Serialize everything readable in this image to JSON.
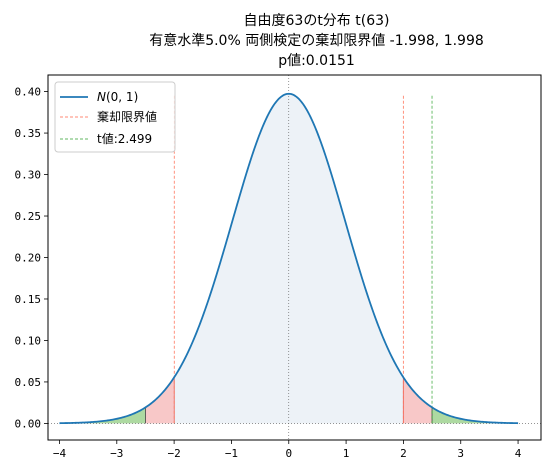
{
  "chart_data": {
    "type": "area",
    "title_lines": [
      "自由度63のt分布 t(63)",
      "有意水準5.0% 両側検定の棄却限界値 -1.998, 1.998",
      "p値:0.0151"
    ],
    "xlabel": "",
    "ylabel": "",
    "xlim": [
      -4.2,
      4.4
    ],
    "ylim": [
      -0.02,
      0.42
    ],
    "x_ticks": [
      -4,
      -3,
      -2,
      -1,
      0,
      1,
      2,
      3,
      4
    ],
    "x_tick_labels": [
      "−4",
      "−3",
      "−2",
      "−1",
      "0",
      "1",
      "2",
      "3",
      "4"
    ],
    "y_ticks": [
      0.0,
      0.05,
      0.1,
      0.15,
      0.2,
      0.25,
      0.3,
      0.35,
      0.4
    ],
    "y_tick_labels": [
      "0.00",
      "0.05",
      "0.10",
      "0.15",
      "0.20",
      "0.25",
      "0.30",
      "0.35",
      "0.40"
    ],
    "degrees_of_freedom": 63,
    "x_range": [
      -4,
      4
    ],
    "critical_values": [
      -1.998,
      1.998
    ],
    "t_value": 2.499,
    "p_value": 0.0151,
    "series": [
      {
        "name": "N(0,1)",
        "color": "#1f77b4",
        "style": "solid"
      },
      {
        "name": "棄却限界値",
        "color": "#ff7f50",
        "style": "dashed"
      },
      {
        "name": "t値:2.499",
        "color": "#2ca02c",
        "style": "dashed"
      }
    ],
    "fills": {
      "center": "#dfe8f0",
      "rejection": "#f4a3a3",
      "p_region": "#98cf8a"
    },
    "legend_position": "upper-left",
    "grid": false
  }
}
